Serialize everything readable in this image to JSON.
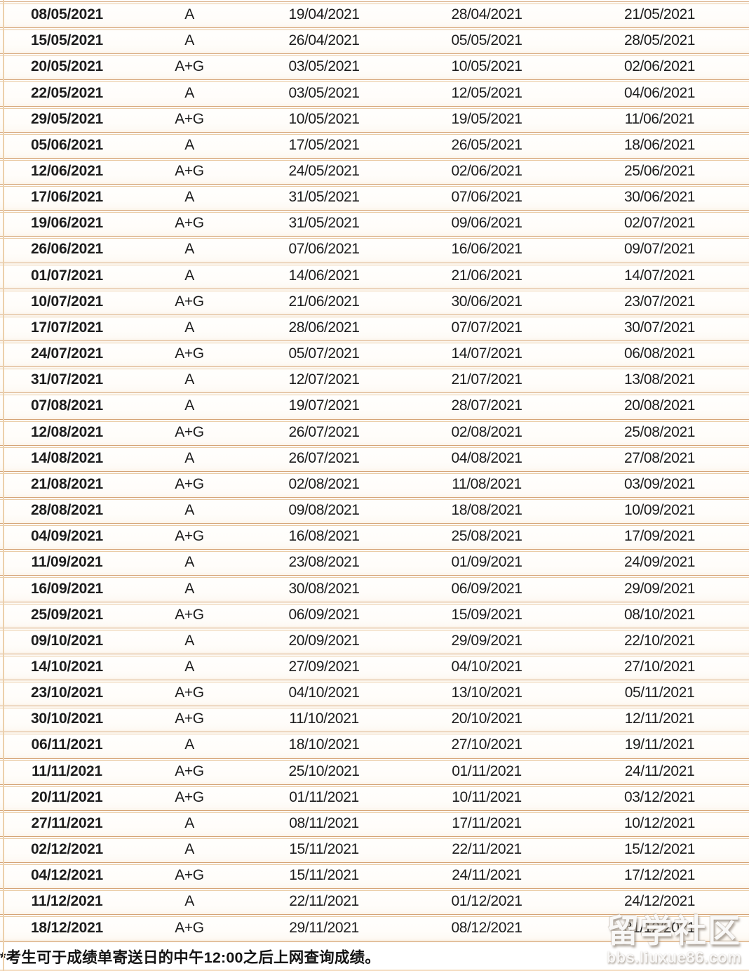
{
  "table": {
    "rows": [
      [
        "08/05/2021",
        "A",
        "19/04/2021",
        "28/04/2021",
        "21/05/2021"
      ],
      [
        "15/05/2021",
        "A",
        "26/04/2021",
        "05/05/2021",
        "28/05/2021"
      ],
      [
        "20/05/2021",
        "A+G",
        "03/05/2021",
        "10/05/2021",
        "02/06/2021"
      ],
      [
        "22/05/2021",
        "A",
        "03/05/2021",
        "12/05/2021",
        "04/06/2021"
      ],
      [
        "29/05/2021",
        "A+G",
        "10/05/2021",
        "19/05/2021",
        "11/06/2021"
      ],
      [
        "05/06/2021",
        "A",
        "17/05/2021",
        "26/05/2021",
        "18/06/2021"
      ],
      [
        "12/06/2021",
        "A+G",
        "24/05/2021",
        "02/06/2021",
        "25/06/2021"
      ],
      [
        "17/06/2021",
        "A",
        "31/05/2021",
        "07/06/2021",
        "30/06/2021"
      ],
      [
        "19/06/2021",
        "A+G",
        "31/05/2021",
        "09/06/2021",
        "02/07/2021"
      ],
      [
        "26/06/2021",
        "A",
        "07/06/2021",
        "16/06/2021",
        "09/07/2021"
      ],
      [
        "01/07/2021",
        "A",
        "14/06/2021",
        "21/06/2021",
        "14/07/2021"
      ],
      [
        "10/07/2021",
        "A+G",
        "21/06/2021",
        "30/06/2021",
        "23/07/2021"
      ],
      [
        "17/07/2021",
        "A",
        "28/06/2021",
        "07/07/2021",
        "30/07/2021"
      ],
      [
        "24/07/2021",
        "A+G",
        "05/07/2021",
        "14/07/2021",
        "06/08/2021"
      ],
      [
        "31/07/2021",
        "A",
        "12/07/2021",
        "21/07/2021",
        "13/08/2021"
      ],
      [
        "07/08/2021",
        "A",
        "19/07/2021",
        "28/07/2021",
        "20/08/2021"
      ],
      [
        "12/08/2021",
        "A+G",
        "26/07/2021",
        "02/08/2021",
        "25/08/2021"
      ],
      [
        "14/08/2021",
        "A",
        "26/07/2021",
        "04/08/2021",
        "27/08/2021"
      ],
      [
        "21/08/2021",
        "A+G",
        "02/08/2021",
        "11/08/2021",
        "03/09/2021"
      ],
      [
        "28/08/2021",
        "A",
        "09/08/2021",
        "18/08/2021",
        "10/09/2021"
      ],
      [
        "04/09/2021",
        "A+G",
        "16/08/2021",
        "25/08/2021",
        "17/09/2021"
      ],
      [
        "11/09/2021",
        "A",
        "23/08/2021",
        "01/09/2021",
        "24/09/2021"
      ],
      [
        "16/09/2021",
        "A",
        "30/08/2021",
        "06/09/2021",
        "29/09/2021"
      ],
      [
        "25/09/2021",
        "A+G",
        "06/09/2021",
        "15/09/2021",
        "08/10/2021"
      ],
      [
        "09/10/2021",
        "A",
        "20/09/2021",
        "29/09/2021",
        "22/10/2021"
      ],
      [
        "14/10/2021",
        "A",
        "27/09/2021",
        "04/10/2021",
        "27/10/2021"
      ],
      [
        "23/10/2021",
        "A+G",
        "04/10/2021",
        "13/10/2021",
        "05/11/2021"
      ],
      [
        "30/10/2021",
        "A+G",
        "11/10/2021",
        "20/10/2021",
        "12/11/2021"
      ],
      [
        "06/11/2021",
        "A",
        "18/10/2021",
        "27/10/2021",
        "19/11/2021"
      ],
      [
        "11/11/2021",
        "A+G",
        "25/10/2021",
        "01/11/2021",
        "24/11/2021"
      ],
      [
        "20/11/2021",
        "A+G",
        "01/11/2021",
        "10/11/2021",
        "03/12/2021"
      ],
      [
        "27/11/2021",
        "A",
        "08/11/2021",
        "17/11/2021",
        "10/12/2021"
      ],
      [
        "02/12/2021",
        "A",
        "15/11/2021",
        "22/11/2021",
        "15/12/2021"
      ],
      [
        "04/12/2021",
        "A+G",
        "15/11/2021",
        "24/11/2021",
        "17/12/2021"
      ],
      [
        "11/12/2021",
        "A",
        "22/11/2021",
        "01/12/2021",
        "24/12/2021"
      ],
      [
        "18/12/2021",
        "A+G",
        "29/11/2021",
        "08/12/2021",
        "31/12/2021"
      ]
    ]
  },
  "footnote": "*考生可于成绩单寄送日的中午12:00之后上网查询成绩。",
  "watermark": {
    "title": "留学社区",
    "url": "bbs.liuxue86.com"
  },
  "colors": {
    "row_line": "#d5a477",
    "row_line_light": "#eacca6",
    "left_rule": "#ecd0ab",
    "text": "#1d1d1d"
  }
}
